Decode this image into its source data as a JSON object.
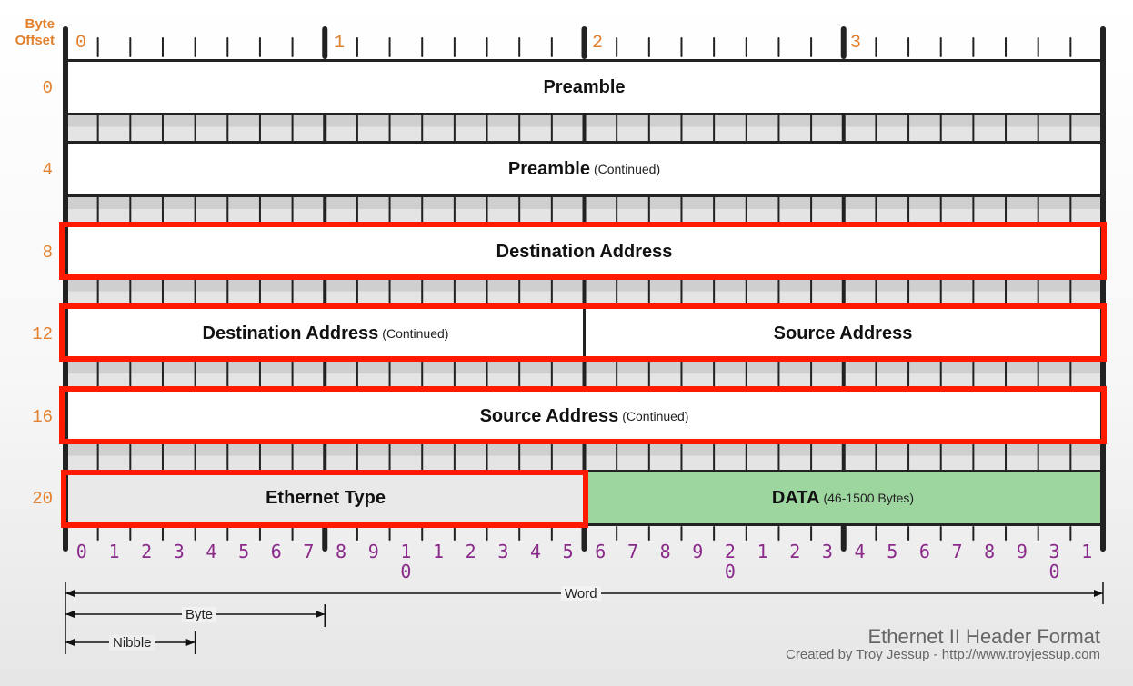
{
  "header": {
    "byte_offset_line1": "Byte",
    "byte_offset_line2": "Offset"
  },
  "top_byte_numbers": [
    "0",
    "1",
    "2",
    "3"
  ],
  "byte_offsets": [
    "0",
    "4",
    "8",
    "12",
    "16",
    "20"
  ],
  "fields": {
    "preamble": {
      "label": "Preamble"
    },
    "preamble_cont": {
      "label": "Preamble",
      "sub": "(Continued)"
    },
    "dest_addr": {
      "label": "Destination Address"
    },
    "dest_addr_cont": {
      "label": "Destination Address",
      "sub": "(Continued)"
    },
    "src_addr": {
      "label": "Source Address"
    },
    "src_addr_cont": {
      "label": "Source Address",
      "sub": "(Continued)"
    },
    "eth_type": {
      "label": "Ethernet Type"
    },
    "data": {
      "label": "DATA",
      "sub": "(46-1500 Bytes)"
    }
  },
  "bit_numbers": [
    "0",
    "1",
    "2",
    "3",
    "4",
    "5",
    "6",
    "7",
    "8",
    "9",
    "1\n0",
    "1",
    "2",
    "3",
    "4",
    "5",
    "6",
    "7",
    "8",
    "9",
    "2\n0",
    "1",
    "2",
    "3",
    "4",
    "5",
    "6",
    "7",
    "8",
    "9",
    "3\n0",
    "1"
  ],
  "measures": {
    "word": "Word",
    "byte": "Byte",
    "nibble": "Nibble"
  },
  "credit": {
    "title": "Ethernet II Header Format",
    "subtitle": "Created by Troy Jessup - http://www.troyjessup.com"
  },
  "colors": {
    "highlight": "#ff1a00",
    "data_fill": "#9ed6a0",
    "orange": "#e2802e",
    "purple": "#8a2a8a"
  }
}
